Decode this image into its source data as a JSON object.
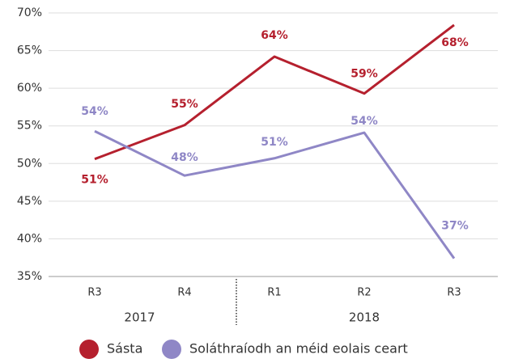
{
  "chart_data": {
    "type": "line",
    "categories": [
      "R3",
      "R4",
      "R1",
      "R2",
      "R3"
    ],
    "groups": [
      "2017",
      "2018"
    ],
    "series": [
      {
        "name": "Sásta",
        "color": "#b5202e",
        "values": [
          50.6,
          55.1,
          64.2,
          59.3,
          68.4
        ],
        "value_labels": [
          "51%",
          "55%",
          "64%",
          "59%",
          "68%"
        ]
      },
      {
        "name": "Soláthraíodh an méid eolais ceart",
        "color": "#8f87c6",
        "values": [
          54.3,
          48.4,
          50.7,
          54.1,
          37.4
        ],
        "value_labels": [
          "54%",
          "48%",
          "51%",
          "54%",
          "37%"
        ]
      }
    ],
    "ylim": [
      35,
      70
    ],
    "yticks": [
      {
        "value": 35,
        "label": "35%"
      },
      {
        "value": 40,
        "label": "40%"
      },
      {
        "value": 45,
        "label": "45%"
      },
      {
        "value": 50,
        "label": "50%"
      },
      {
        "value": 55,
        "label": "55%"
      },
      {
        "value": 60,
        "label": "60%"
      },
      {
        "value": 65,
        "label": "65%"
      },
      {
        "value": 70,
        "label": "70%"
      }
    ],
    "grid": true
  }
}
